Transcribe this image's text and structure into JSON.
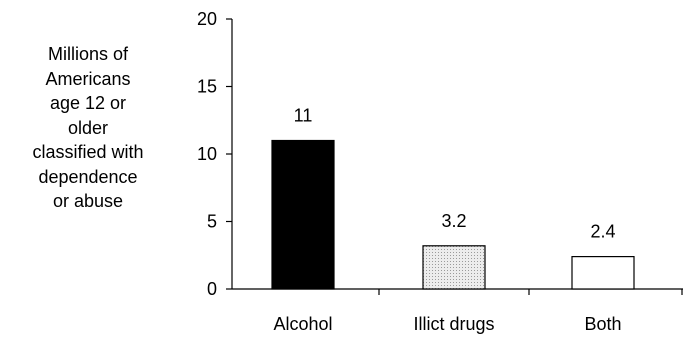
{
  "chart_data": {
    "type": "bar",
    "categories": [
      "Alcohol",
      "Illict drugs",
      "Both"
    ],
    "values": [
      11,
      3.2,
      2.4
    ],
    "data_labels": [
      "11",
      "3.2",
      "2.4"
    ],
    "ylabel_lines": [
      "Millions of",
      "Americans",
      "age 12 or",
      "older",
      "classified with",
      "dependence",
      "or abuse"
    ],
    "xlabel": "",
    "ylim": [
      0,
      20
    ],
    "yticks": [
      0,
      5,
      10,
      15,
      20
    ],
    "grid": false,
    "colors": {
      "bars": [
        "#000000",
        "#dedede",
        "#ffffff"
      ],
      "stroke": "#000000"
    }
  }
}
